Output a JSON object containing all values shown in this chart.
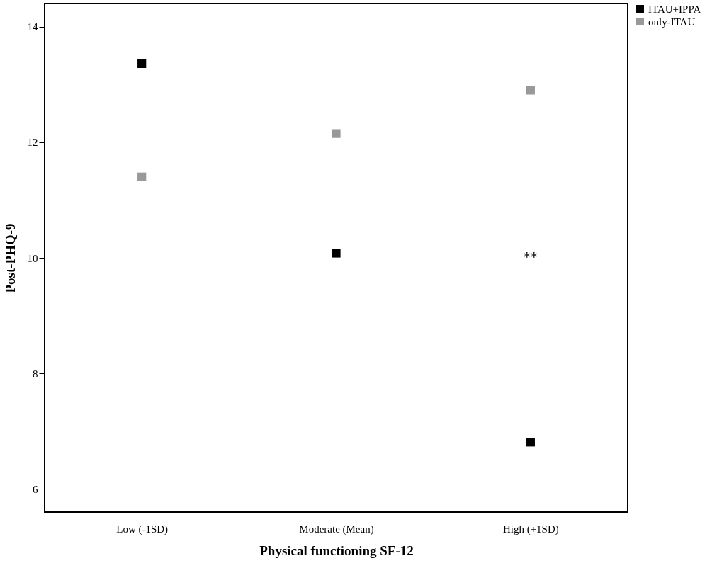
{
  "chart_data": {
    "type": "scatter",
    "xlabel": "Physical functioning SF-12",
    "ylabel": "Post-PHQ-9",
    "categories": [
      "Low (-1SD)",
      "Moderate (Mean)",
      "High (+1SD)"
    ],
    "series": [
      {
        "name": "ITAU+IPPA",
        "color": "#000000",
        "values": [
          13.36,
          10.08,
          6.81
        ]
      },
      {
        "name": "only-ITAU",
        "color": "#999999",
        "values": [
          11.4,
          12.15,
          12.9
        ]
      }
    ],
    "ylim": [
      5.6,
      14.4
    ],
    "yticks": [
      6,
      8,
      10,
      12,
      14
    ],
    "grid": false,
    "legend": "top right",
    "marker": "square",
    "annotations": [
      "**"
    ]
  }
}
